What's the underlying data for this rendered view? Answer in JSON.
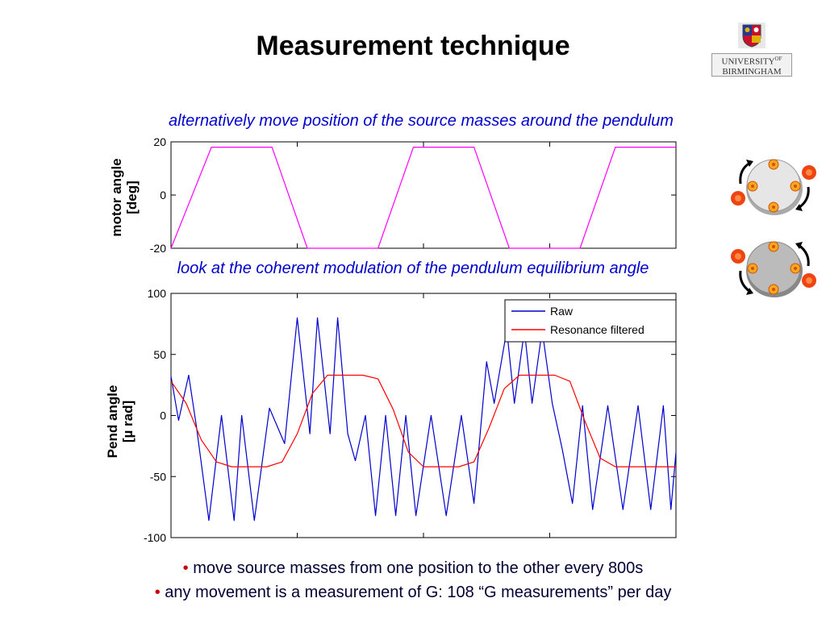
{
  "slide": {
    "title": "Measurement technique",
    "logo_text_line1": "UNIVERSITY",
    "logo_text_of": "OF",
    "logo_text_line2": "BIRMINGHAM",
    "subtitle1": "alternatively move position of the source masses around the pendulum",
    "subtitle2": "look at the coherent modulation of the pendulum equilibrium angle",
    "bullets": [
      "move source masses from one position to the other every 800s",
      "any movement is a measurement of G: 108 “G measurements” per day"
    ],
    "bullet_char": "•"
  },
  "chart_data": [
    {
      "type": "line",
      "ylabel": "motor angle [deg]",
      "ylabel_lines": [
        "motor angle",
        "[deg]"
      ],
      "ylim": [
        -20,
        20
      ],
      "yticks": [
        "20",
        "0",
        "-20"
      ],
      "ytick_values": [
        20,
        0,
        -20
      ],
      "xlim": [
        0,
        100
      ],
      "x_gridlines": [
        25,
        50,
        75
      ],
      "grid": true,
      "series": [
        {
          "color": "#ff00ff",
          "x": [
            0,
            8,
            20,
            27,
            41,
            48,
            60,
            67,
            81,
            88,
            100
          ],
          "y": [
            -20,
            18,
            18,
            -20,
            -20,
            18,
            18,
            -20,
            -20,
            18,
            18
          ]
        }
      ]
    },
    {
      "type": "line",
      "ylabel": "Pend angle [µ rad]",
      "ylabel_lines": [
        "Pend angle",
        "[µ rad]"
      ],
      "ylim": [
        -100,
        100
      ],
      "yticks": [
        "100",
        "50",
        "0",
        "-50",
        "-100"
      ],
      "ytick_values": [
        100,
        50,
        0,
        -50,
        -100
      ],
      "xlim": [
        0,
        100
      ],
      "x_gridlines": [
        25,
        50,
        75
      ],
      "grid": true,
      "legend_position": "top-right",
      "series": [
        {
          "name": "Raw",
          "color": "#0000cc",
          "x": [
            0,
            1.5,
            3.5,
            5,
            7.5,
            10,
            12.5,
            14,
            16.5,
            19.5,
            22.5,
            25,
            27.5,
            29,
            31.5,
            33,
            35,
            36.5,
            38.5,
            40.5,
            42.5,
            44.5,
            46.5,
            48.5,
            51.5,
            54.5,
            57.5,
            60,
            62.5,
            64,
            66.5,
            68,
            70,
            71.5,
            73.5,
            75.5,
            77.5,
            79.5,
            81.5,
            83.5,
            86.5,
            89.5,
            92.5,
            95,
            97.5,
            99,
            100
          ],
          "y": [
            32,
            -4,
            33,
            -8,
            -86,
            0,
            -86,
            0,
            -86,
            6,
            -23,
            80,
            -15,
            80,
            -15,
            80,
            -15,
            -37,
            0,
            -82,
            0,
            -82,
            0,
            -82,
            0,
            -82,
            0,
            -72,
            44,
            10,
            70,
            10,
            70,
            10,
            70,
            10,
            -28,
            -72,
            8,
            -77,
            8,
            -77,
            8,
            -77,
            8,
            -77,
            -30
          ]
        },
        {
          "name": "Resonance filtered",
          "color": "#ff0000",
          "x": [
            0,
            3,
            6,
            9,
            12,
            19,
            22,
            25,
            28,
            31,
            38,
            41,
            44,
            47,
            50,
            57,
            60,
            63,
            66,
            69,
            76,
            79,
            82,
            85,
            88,
            100
          ],
          "y": [
            28,
            10,
            -20,
            -38,
            -42,
            -42,
            -38,
            -15,
            18,
            33,
            33,
            30,
            5,
            -30,
            -42,
            -42,
            -38,
            -10,
            22,
            33,
            33,
            28,
            -5,
            -35,
            -42,
            -42
          ]
        }
      ]
    }
  ]
}
